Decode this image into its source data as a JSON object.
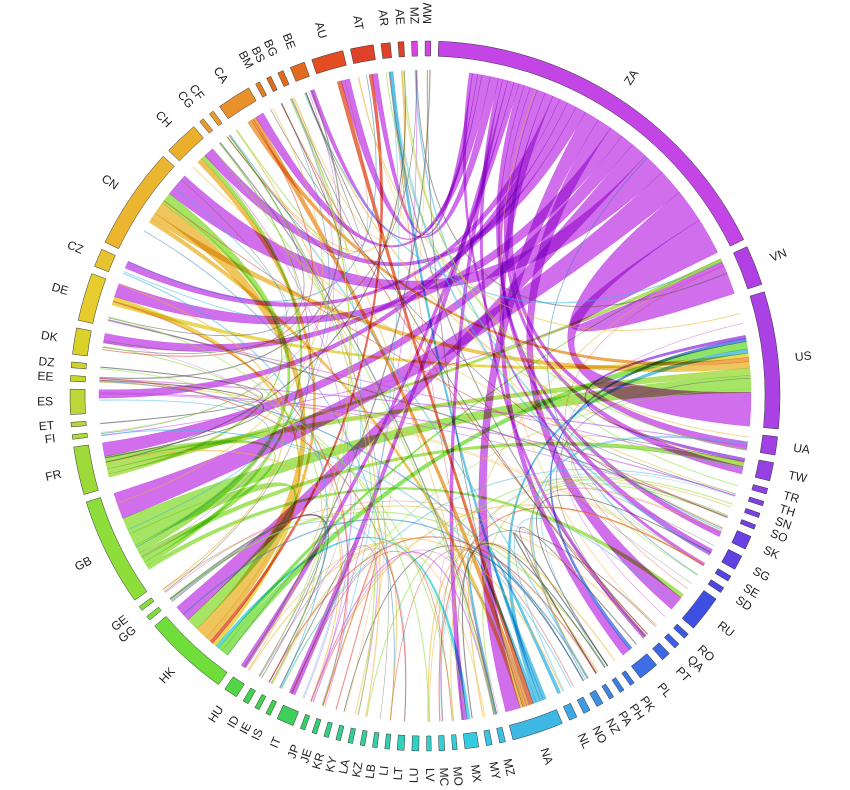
{
  "diagram": {
    "type": "chord",
    "segments": [
      {
        "id": "AE",
        "color": "#e0412a",
        "weight": 0.5
      },
      {
        "id": "AR",
        "color": "#e0412a",
        "weight": 0.8
      },
      {
        "id": "AT",
        "color": "#e0412a",
        "weight": 2
      },
      {
        "id": "AU",
        "color": "#e24e22",
        "weight": 2.8
      },
      {
        "id": "BE",
        "color": "#e26a1f",
        "weight": 1.3
      },
      {
        "id": "BG",
        "color": "#e26a1f",
        "weight": 0.5
      },
      {
        "id": "BS",
        "color": "#e26a1f",
        "weight": 0.4
      },
      {
        "id": "BM",
        "color": "#e27f1f",
        "weight": 0.4
      },
      {
        "id": "CA",
        "color": "#e8912a",
        "weight": 3
      },
      {
        "id": "CF",
        "color": "#e99b2b",
        "weight": 0.4
      },
      {
        "id": "CG",
        "color": "#e99b2b",
        "weight": 0.4
      },
      {
        "id": "CH",
        "color": "#eab02c",
        "weight": 3
      },
      {
        "id": "CN",
        "color": "#ebb530",
        "weight": 9
      },
      {
        "id": "CZ",
        "color": "#e5c42f",
        "weight": 1.6
      },
      {
        "id": "DE",
        "color": "#e6cc2c",
        "weight": 4.2
      },
      {
        "id": "DK",
        "color": "#d9d22a",
        "weight": 2.3
      },
      {
        "id": "DZ",
        "color": "#cfd42c",
        "weight": 0.5
      },
      {
        "id": "EE",
        "color": "#c9d52d",
        "weight": 0.5
      },
      {
        "id": "ES",
        "color": "#bfd63a",
        "weight": 2.2
      },
      {
        "id": "ET",
        "color": "#b5d73a",
        "weight": 0.4
      },
      {
        "id": "FI",
        "color": "#addb3a",
        "weight": 0.4
      },
      {
        "id": "FR",
        "color": "#9ed93a",
        "weight": 4.2
      },
      {
        "id": "GB",
        "color": "#8ddd3b",
        "weight": 9.5
      },
      {
        "id": "GE",
        "color": "#84dd3b",
        "weight": 0.4
      },
      {
        "id": "GG",
        "color": "#80dd3b",
        "weight": 0.4
      },
      {
        "id": "HK",
        "color": "#6fdd3a",
        "weight": 7.5
      },
      {
        "id": "HU",
        "color": "#52d646",
        "weight": 1.2
      },
      {
        "id": "ID",
        "color": "#44d050",
        "weight": 0.5
      },
      {
        "id": "IE",
        "color": "#44d050",
        "weight": 0.4
      },
      {
        "id": "IS",
        "color": "#44d050",
        "weight": 0.4
      },
      {
        "id": "IT",
        "color": "#3ecf5a",
        "weight": 1.5
      },
      {
        "id": "JP",
        "color": "#36cf6a",
        "weight": 0.4
      },
      {
        "id": "JE",
        "color": "#33cf76",
        "weight": 0.4
      },
      {
        "id": "KR",
        "color": "#33cf82",
        "weight": 0.4
      },
      {
        "id": "KY",
        "color": "#33cf8c",
        "weight": 0.4
      },
      {
        "id": "LA",
        "color": "#33cf96",
        "weight": 0.4
      },
      {
        "id": "KZ",
        "color": "#33cf9f",
        "weight": 0.4
      },
      {
        "id": "LB",
        "color": "#33d0a9",
        "weight": 0.4
      },
      {
        "id": "LI",
        "color": "#33d0b2",
        "weight": 0.4
      },
      {
        "id": "LT",
        "color": "#33d0bb",
        "weight": 0.6
      },
      {
        "id": "LU",
        "color": "#33d0c4",
        "weight": 0.6
      },
      {
        "id": "LV",
        "color": "#33d0cc",
        "weight": 0.4
      },
      {
        "id": "MC",
        "color": "#33d0d4",
        "weight": 0.5
      },
      {
        "id": "MO",
        "color": "#33cfdb",
        "weight": 0.4
      },
      {
        "id": "MX",
        "color": "#33cbe0",
        "weight": 1.2
      },
      {
        "id": "MY",
        "color": "#38c5e2",
        "weight": 0.5
      },
      {
        "id": "MZ",
        "color": "#3bc0e3",
        "weight": 0.5
      },
      {
        "id": "NA",
        "color": "#3db7e3",
        "weight": 4.5
      },
      {
        "id": "NL",
        "color": "#3da8e3",
        "weight": 0.7
      },
      {
        "id": "NO",
        "color": "#3d9be3",
        "weight": 0.6
      },
      {
        "id": "NZ",
        "color": "#3d8fe3",
        "weight": 0.6
      },
      {
        "id": "PA",
        "color": "#3d84e3",
        "weight": 0.4
      },
      {
        "id": "PH",
        "color": "#3d7ce3",
        "weight": 0.4
      },
      {
        "id": "PK",
        "color": "#3d75e3",
        "weight": 0.4
      },
      {
        "id": "PL",
        "color": "#3d6ee3",
        "weight": 1.8
      },
      {
        "id": "PT",
        "color": "#3d66e3",
        "weight": 0.8
      },
      {
        "id": "QA",
        "color": "#3d5fe3",
        "weight": 0.5
      },
      {
        "id": "RO",
        "color": "#3d57e3",
        "weight": 0.5
      },
      {
        "id": "RU",
        "color": "#3d4ee3",
        "weight": 3.2
      },
      {
        "id": "SD",
        "color": "#4d48e3",
        "weight": 0.5
      },
      {
        "id": "SE",
        "color": "#5445e3",
        "weight": 0.5
      },
      {
        "id": "SG",
        "color": "#6042e3",
        "weight": 1.3
      },
      {
        "id": "SK",
        "color": "#6a40e3",
        "weight": 1.2
      },
      {
        "id": "SO",
        "color": "#7340e3",
        "weight": 0.4
      },
      {
        "id": "SN",
        "color": "#7a40e3",
        "weight": 0.4
      },
      {
        "id": "TH",
        "color": "#8140e3",
        "weight": 0.4
      },
      {
        "id": "TR",
        "color": "#8a40e3",
        "weight": 0.5
      },
      {
        "id": "TW",
        "color": "#9540e3",
        "weight": 1.6
      },
      {
        "id": "UA",
        "color": "#a040e3",
        "weight": 1.6
      },
      {
        "id": "US",
        "color": "#aa42e3",
        "weight": 12
      },
      {
        "id": "VN",
        "color": "#b040e3",
        "weight": 3.5
      },
      {
        "id": "ZA",
        "color": "#c445e6",
        "weight": 33
      },
      {
        "id": "MW",
        "color": "#cf47e0",
        "weight": 0.5
      },
      {
        "id": "MZ",
        "color": "#d547dc",
        "weight": 0.5
      }
    ],
    "ribbons": [
      {
        "from": "ZA",
        "to": "VN",
        "value": 3.5,
        "color": "#c445e6"
      },
      {
        "from": "ZA",
        "to": "US",
        "value": 3.2,
        "color": "#c445e6"
      },
      {
        "from": "ZA",
        "to": "GB",
        "value": 2.5,
        "color": "#c445e6"
      },
      {
        "from": "ZA",
        "to": "CN",
        "value": 2.2,
        "color": "#c445e6"
      },
      {
        "from": "ZA",
        "to": "HK",
        "value": 1.6,
        "color": "#c445e6"
      },
      {
        "from": "ZA",
        "to": "FR",
        "value": 1.3,
        "color": "#c445e6"
      },
      {
        "from": "ZA",
        "to": "DE",
        "value": 1.3,
        "color": "#c445e6"
      },
      {
        "from": "ZA",
        "to": "RU",
        "value": 1.4,
        "color": "#c445e6"
      },
      {
        "from": "ZA",
        "to": "NA",
        "value": 1.4,
        "color": "#c445e6"
      },
      {
        "from": "ZA",
        "to": "CH",
        "value": 1,
        "color": "#c445e6"
      },
      {
        "from": "ZA",
        "to": "DK",
        "value": 0.9,
        "color": "#c445e6"
      },
      {
        "from": "ZA",
        "to": "ES",
        "value": 0.8,
        "color": "#c445e6"
      },
      {
        "from": "ZA",
        "to": "CZ",
        "value": 0.7,
        "color": "#c445e6"
      },
      {
        "from": "ZA",
        "to": "PL",
        "value": 0.8,
        "color": "#c445e6"
      },
      {
        "from": "ZA",
        "to": "UA",
        "value": 0.8,
        "color": "#c445e6"
      },
      {
        "from": "ZA",
        "to": "TW",
        "value": 0.7,
        "color": "#c445e6"
      },
      {
        "from": "ZA",
        "to": "SG",
        "value": 0.6,
        "color": "#c445e6"
      },
      {
        "from": "ZA",
        "to": "SK",
        "value": 0.5,
        "color": "#c445e6"
      },
      {
        "from": "ZA",
        "to": "HU",
        "value": 0.5,
        "color": "#c445e6"
      },
      {
        "from": "ZA",
        "to": "IT",
        "value": 0.6,
        "color": "#c445e6"
      },
      {
        "from": "ZA",
        "to": "MX",
        "value": 0.5,
        "color": "#c445e6"
      },
      {
        "from": "ZA",
        "to": "PT",
        "value": 0.4,
        "color": "#c445e6"
      },
      {
        "from": "ZA",
        "to": "AU",
        "value": 0.8,
        "color": "#c445e6"
      },
      {
        "from": "ZA",
        "to": "CA",
        "value": 0.8,
        "color": "#c445e6"
      },
      {
        "from": "ZA",
        "to": "BE",
        "value": 0.4,
        "color": "#c445e6"
      },
      {
        "from": "ZA",
        "to": "AT",
        "value": 0.5,
        "color": "#c445e6"
      },
      {
        "from": "ZA",
        "to": "SE",
        "value": 0.3,
        "color": "#c445e6"
      },
      {
        "from": "GB",
        "to": "US",
        "value": 1.6,
        "color": "#8ddd3b"
      },
      {
        "from": "GB",
        "to": "HK",
        "value": 1.2,
        "color": "#8ddd3b"
      },
      {
        "from": "GB",
        "to": "CN",
        "value": 0.8,
        "color": "#8ddd3b"
      },
      {
        "from": "GB",
        "to": "TW",
        "value": 0.5,
        "color": "#8ddd3b"
      },
      {
        "from": "GB",
        "to": "FR",
        "value": 0.5,
        "color": "#8ddd3b"
      },
      {
        "from": "GB",
        "to": "CH",
        "value": 0.4,
        "color": "#8ddd3b"
      },
      {
        "from": "GB",
        "to": "RU",
        "value": 0.4,
        "color": "#8ddd3b"
      },
      {
        "from": "FR",
        "to": "US",
        "value": 0.7,
        "color": "#9ed93a"
      },
      {
        "from": "FR",
        "to": "VN",
        "value": 0.5,
        "color": "#9ed93a"
      },
      {
        "from": "FR",
        "to": "CN",
        "value": 0.3,
        "color": "#9ed93a"
      },
      {
        "from": "CN",
        "to": "HK",
        "value": 1.2,
        "color": "#ebb530"
      },
      {
        "from": "CN",
        "to": "US",
        "value": 0.6,
        "color": "#ebb530"
      },
      {
        "from": "CN",
        "to": "NA",
        "value": 0.4,
        "color": "#ebb530"
      },
      {
        "from": "CH",
        "to": "HK",
        "value": 0.5,
        "color": "#eab02c"
      },
      {
        "from": "CA",
        "to": "NA",
        "value": 0.5,
        "color": "#e8912a"
      },
      {
        "from": "CA",
        "to": "US",
        "value": 0.4,
        "color": "#e8912a"
      },
      {
        "from": "AU",
        "to": "NA",
        "value": 0.4,
        "color": "#e24e22"
      },
      {
        "from": "AT",
        "to": "HK",
        "value": 0.3,
        "color": "#e0412a"
      },
      {
        "from": "DE",
        "to": "HK",
        "value": 0.4,
        "color": "#e6cc2c"
      },
      {
        "from": "DE",
        "to": "US",
        "value": 0.4,
        "color": "#e6cc2c"
      },
      {
        "from": "NA",
        "to": "MZ",
        "value": 0.3,
        "color": "#3db7e3"
      },
      {
        "from": "NA",
        "to": "US",
        "value": 0.4,
        "color": "#3db7e3"
      },
      {
        "from": "NA",
        "to": "AR",
        "value": 0.3,
        "color": "#3db7e3"
      },
      {
        "from": "NA",
        "to": "NL",
        "value": 0.3,
        "color": "#3db7e3"
      },
      {
        "from": "MX",
        "to": "HK",
        "value": 0.3,
        "color": "#33cbe0"
      },
      {
        "from": "HK",
        "to": "VN",
        "value": 0.4,
        "color": "#6fdd3a"
      },
      {
        "from": "HK",
        "to": "US",
        "value": 0.7,
        "color": "#6fdd3a"
      },
      {
        "from": "PL",
        "to": "US",
        "value": 0.3,
        "color": "#3d6ee3"
      },
      {
        "from": "TW",
        "to": "US",
        "value": 0.3,
        "color": "#9540e3"
      }
    ],
    "thin_links": 140
  }
}
